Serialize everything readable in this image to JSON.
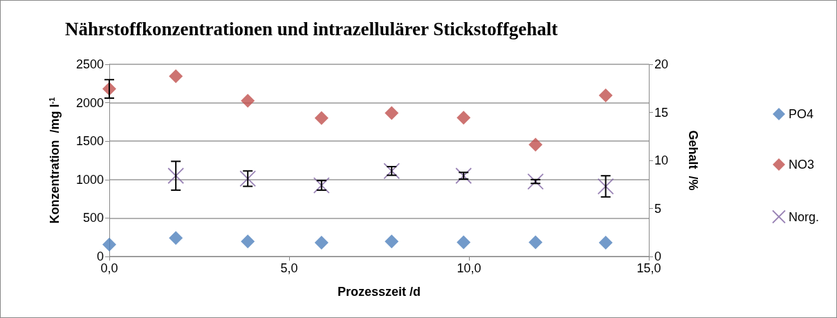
{
  "chart_data": {
    "type": "scatter",
    "title": "Nährstoffkonzentrationen und intrazellulärer Stickstoffgehalt",
    "xlabel": "Prozesszeit /d",
    "ylabel": "Konzentration  /mg l$^{-1}$",
    "y2label": "Gehalt  /%",
    "x": [
      0,
      1.85,
      3.85,
      5.9,
      7.85,
      9.85,
      11.85,
      13.8
    ],
    "series": [
      {
        "name": "PO4",
        "color": "#4f81bd",
        "marker": "diamond",
        "values": [
          155,
          240,
          195,
          180,
          195,
          185,
          185,
          180
        ]
      },
      {
        "name": "NO3",
        "color": "#c0504d",
        "marker": "diamond",
        "values": [
          2180,
          2345,
          2025,
          1800,
          1865,
          1805,
          1455,
          2095
        ],
        "errors": [
          120,
          null,
          null,
          null,
          null,
          null,
          null,
          null
        ]
      },
      {
        "name": "Norg.",
        "color": "#8064a2",
        "marker": "cross",
        "axis": "y2",
        "values": [
          null,
          8.4,
          8.1,
          7.4,
          8.9,
          8.4,
          7.8,
          7.3
        ],
        "errors": [
          null,
          1.5,
          0.8,
          0.5,
          0.45,
          0.35,
          0.2,
          1.1
        ]
      }
    ],
    "xlim": [
      0,
      15
    ],
    "xticks": [
      {
        "value": 0,
        "label": "0,0"
      },
      {
        "value": 5,
        "label": "5,0"
      },
      {
        "value": 10,
        "label": "10,0"
      },
      {
        "value": 15,
        "label": "15,0"
      }
    ],
    "ylim": [
      0,
      2500
    ],
    "yticks": [
      0,
      500,
      1000,
      1500,
      2000,
      2500
    ],
    "y2lim": [
      0,
      20
    ],
    "y2ticks": [
      0,
      5,
      10,
      15,
      20
    ],
    "grid": "y",
    "legend": "right"
  }
}
